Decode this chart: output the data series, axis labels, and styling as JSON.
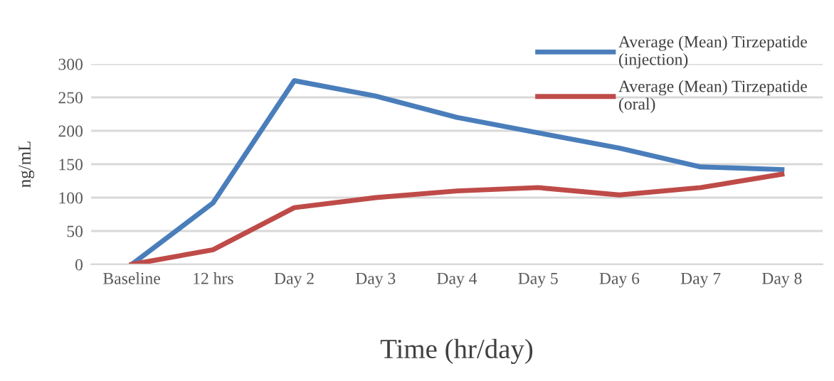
{
  "chart_data": {
    "type": "line",
    "xlabel": "Time (hr/day)",
    "ylabel": "ng/mL",
    "categories": [
      "Baseline",
      "12 hrs",
      "Day 2",
      "Day 3",
      "Day 4",
      "Day 5",
      "Day 6",
      "Day 7",
      "Day 8"
    ],
    "series": [
      {
        "name": "Average (Mean) Tirzepatide\n(injection)",
        "color": "#4a7ebb",
        "values": [
          0,
          92,
          275,
          252,
          220,
          197,
          174,
          146,
          142
        ]
      },
      {
        "name": "Average (Mean) Tirzepatide\n(oral)",
        "color": "#be4b48",
        "values": [
          0,
          22,
          85,
          100,
          110,
          115,
          104,
          115,
          135
        ]
      }
    ],
    "ylim": [
      0,
      300
    ],
    "yticks": [
      0,
      50,
      100,
      150,
      200,
      250,
      300
    ],
    "grid": "y",
    "legend": "top right",
    "marker": "none",
    "line_style": "solid"
  }
}
